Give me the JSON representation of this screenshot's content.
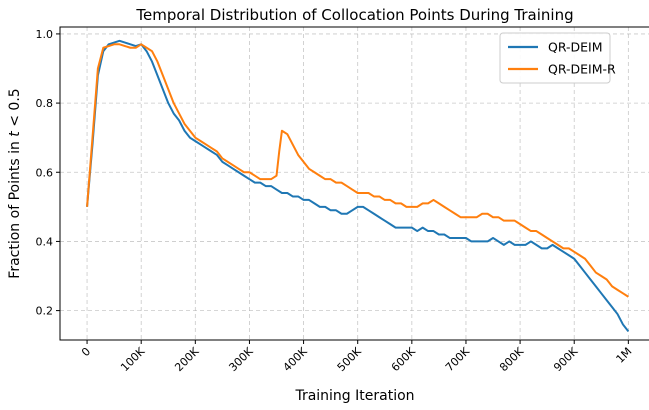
{
  "chart_data": {
    "type": "line",
    "title": "Temporal Distribution of Collocation Points During Training",
    "xlabel": "Training Iteration",
    "ylabel_prefix": "Fraction of Points in ",
    "ylabel_math": "t",
    "ylabel_suffix": " < 0.5",
    "xlim": [
      -50000,
      1040000
    ],
    "ylim": [
      0.115,
      1.02
    ],
    "xticks": [
      0,
      100000,
      200000,
      300000,
      400000,
      500000,
      600000,
      700000,
      800000,
      900000,
      1000000
    ],
    "xtick_labels": [
      "0",
      "100K",
      "200K",
      "300K",
      "400K",
      "500K",
      "600K",
      "700K",
      "800K",
      "900K",
      "1M"
    ],
    "yticks": [
      0.2,
      0.4,
      0.6,
      0.8,
      1.0
    ],
    "ytick_labels": [
      "0.2",
      "0.4",
      "0.6",
      "0.8",
      "1.0"
    ],
    "grid": true,
    "legend_position": "top-right",
    "series": [
      {
        "name": "QR-DEIM",
        "color": "#1f77b4",
        "x": [
          0,
          10000,
          20000,
          30000,
          40000,
          50000,
          60000,
          70000,
          80000,
          90000,
          100000,
          110000,
          120000,
          130000,
          140000,
          150000,
          160000,
          170000,
          180000,
          190000,
          200000,
          210000,
          220000,
          230000,
          240000,
          250000,
          260000,
          270000,
          280000,
          290000,
          300000,
          310000,
          320000,
          330000,
          340000,
          350000,
          360000,
          370000,
          380000,
          390000,
          400000,
          410000,
          420000,
          430000,
          440000,
          450000,
          460000,
          470000,
          480000,
          490000,
          500000,
          510000,
          520000,
          530000,
          540000,
          550000,
          560000,
          570000,
          580000,
          590000,
          600000,
          610000,
          620000,
          630000,
          640000,
          650000,
          660000,
          670000,
          680000,
          690000,
          700000,
          710000,
          720000,
          730000,
          740000,
          750000,
          760000,
          770000,
          780000,
          790000,
          800000,
          810000,
          820000,
          830000,
          840000,
          850000,
          860000,
          870000,
          880000,
          890000,
          900000,
          910000,
          920000,
          930000,
          940000,
          950000,
          960000,
          970000,
          980000,
          990000,
          1000000
        ],
        "values": [
          0.5,
          0.68,
          0.88,
          0.95,
          0.97,
          0.975,
          0.98,
          0.975,
          0.97,
          0.965,
          0.97,
          0.95,
          0.92,
          0.88,
          0.84,
          0.8,
          0.77,
          0.75,
          0.72,
          0.7,
          0.69,
          0.68,
          0.67,
          0.66,
          0.65,
          0.63,
          0.62,
          0.61,
          0.6,
          0.59,
          0.58,
          0.57,
          0.57,
          0.56,
          0.56,
          0.55,
          0.54,
          0.54,
          0.53,
          0.53,
          0.52,
          0.52,
          0.51,
          0.5,
          0.5,
          0.49,
          0.49,
          0.48,
          0.48,
          0.49,
          0.5,
          0.5,
          0.49,
          0.48,
          0.47,
          0.46,
          0.45,
          0.44,
          0.44,
          0.44,
          0.44,
          0.43,
          0.44,
          0.43,
          0.43,
          0.42,
          0.42,
          0.41,
          0.41,
          0.41,
          0.41,
          0.4,
          0.4,
          0.4,
          0.4,
          0.41,
          0.4,
          0.39,
          0.4,
          0.39,
          0.39,
          0.39,
          0.4,
          0.39,
          0.38,
          0.38,
          0.39,
          0.38,
          0.37,
          0.36,
          0.35,
          0.33,
          0.31,
          0.29,
          0.27,
          0.25,
          0.23,
          0.21,
          0.19,
          0.16,
          0.14
        ]
      },
      {
        "name": "QR-DEIM-R",
        "color": "#ff7f0e",
        "x": [
          0,
          10000,
          20000,
          30000,
          40000,
          50000,
          60000,
          70000,
          80000,
          90000,
          100000,
          110000,
          120000,
          130000,
          140000,
          150000,
          160000,
          170000,
          180000,
          190000,
          200000,
          210000,
          220000,
          230000,
          240000,
          250000,
          260000,
          270000,
          280000,
          290000,
          300000,
          310000,
          320000,
          330000,
          340000,
          350000,
          355000,
          360000,
          370000,
          380000,
          390000,
          400000,
          410000,
          420000,
          430000,
          440000,
          450000,
          460000,
          470000,
          480000,
          490000,
          500000,
          510000,
          520000,
          530000,
          540000,
          550000,
          560000,
          570000,
          580000,
          590000,
          600000,
          610000,
          620000,
          630000,
          640000,
          650000,
          660000,
          670000,
          680000,
          690000,
          700000,
          710000,
          720000,
          730000,
          740000,
          750000,
          760000,
          770000,
          780000,
          790000,
          800000,
          810000,
          820000,
          830000,
          840000,
          850000,
          860000,
          870000,
          880000,
          890000,
          900000,
          910000,
          920000,
          930000,
          940000,
          950000,
          960000,
          970000,
          980000,
          990000,
          1000000
        ],
        "values": [
          0.5,
          0.7,
          0.9,
          0.96,
          0.965,
          0.97,
          0.97,
          0.965,
          0.96,
          0.96,
          0.97,
          0.96,
          0.95,
          0.92,
          0.88,
          0.84,
          0.8,
          0.77,
          0.74,
          0.72,
          0.7,
          0.69,
          0.68,
          0.67,
          0.66,
          0.64,
          0.63,
          0.62,
          0.61,
          0.6,
          0.6,
          0.59,
          0.58,
          0.58,
          0.58,
          0.59,
          0.66,
          0.72,
          0.71,
          0.68,
          0.65,
          0.63,
          0.61,
          0.6,
          0.59,
          0.58,
          0.58,
          0.57,
          0.57,
          0.56,
          0.55,
          0.54,
          0.54,
          0.54,
          0.53,
          0.53,
          0.52,
          0.52,
          0.51,
          0.51,
          0.5,
          0.5,
          0.5,
          0.51,
          0.51,
          0.52,
          0.51,
          0.5,
          0.49,
          0.48,
          0.47,
          0.47,
          0.47,
          0.47,
          0.48,
          0.48,
          0.47,
          0.47,
          0.46,
          0.46,
          0.46,
          0.45,
          0.44,
          0.43,
          0.43,
          0.42,
          0.41,
          0.4,
          0.39,
          0.38,
          0.38,
          0.37,
          0.36,
          0.35,
          0.33,
          0.31,
          0.3,
          0.29,
          0.27,
          0.26,
          0.25,
          0.24
        ]
      }
    ]
  }
}
